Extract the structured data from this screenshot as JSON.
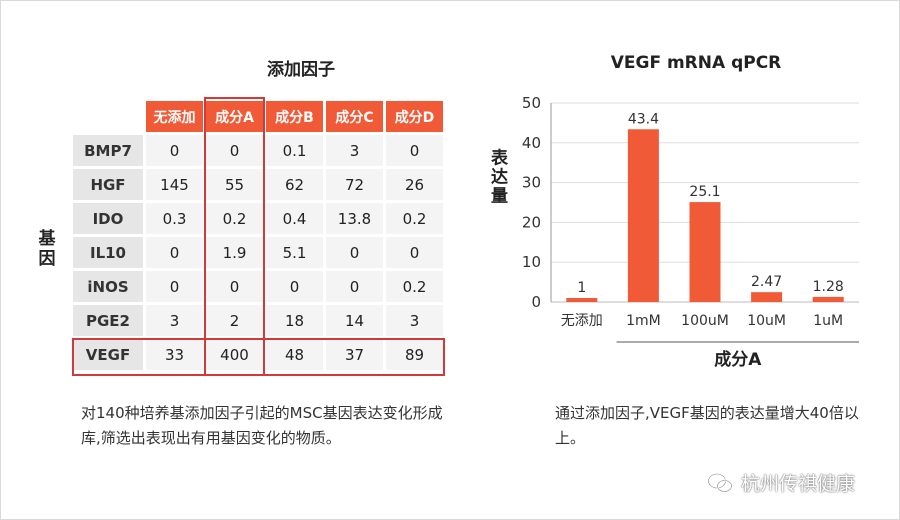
{
  "table": {
    "title": "添加因子",
    "row_axis_label": "基因",
    "columns": [
      "无添加",
      "成分A",
      "成分B",
      "成分C",
      "成分D"
    ],
    "rows": [
      {
        "gene": "BMP7",
        "values": [
          "0",
          "0",
          "0.1",
          "3",
          "0"
        ]
      },
      {
        "gene": "HGF",
        "values": [
          "145",
          "55",
          "62",
          "72",
          "26"
        ]
      },
      {
        "gene": "IDO",
        "values": [
          "0.3",
          "0.2",
          "0.4",
          "13.8",
          "0.2"
        ]
      },
      {
        "gene": "IL10",
        "values": [
          "0",
          "1.9",
          "5.1",
          "0",
          "0"
        ]
      },
      {
        "gene": "iNOS",
        "values": [
          "0",
          "0",
          "0",
          "0",
          "0.2"
        ]
      },
      {
        "gene": "PGE2",
        "values": [
          "3",
          "2",
          "18",
          "14",
          "3"
        ]
      },
      {
        "gene": "VEGF",
        "values": [
          "33",
          "400",
          "48",
          "37",
          "89"
        ]
      }
    ],
    "highlight_color": "#d23a3a",
    "header_color": "#f15a37"
  },
  "captions": {
    "left": "对140种培养基添加因子引起的MSC基因表达变化形成库,筛选出表现出有用基因变化的物质。",
    "right": "通过添加因子,VEGF基因的表达量增大40倍以上。"
  },
  "chart_data": {
    "type": "bar",
    "title": "VEGF mRNA qPCR",
    "ylabel": "表达量",
    "categories": [
      "无添加",
      "1mM",
      "100uM",
      "10uM",
      "1uM"
    ],
    "values": [
      1,
      43.4,
      25.1,
      2.47,
      1.28
    ],
    "value_labels": [
      "1",
      "43.4",
      "25.1",
      "2.47",
      "1.28"
    ],
    "group_label": "成分A",
    "group_categories": [
      "1mM",
      "100uM",
      "10uM",
      "1uM"
    ],
    "ylim": [
      0,
      50
    ],
    "yticks": [
      0,
      10,
      20,
      30,
      40,
      50
    ],
    "grid": true,
    "bar_color": "#f15a37"
  },
  "watermark": {
    "text": "杭州传祺健康",
    "icon": "wechat-icon"
  }
}
